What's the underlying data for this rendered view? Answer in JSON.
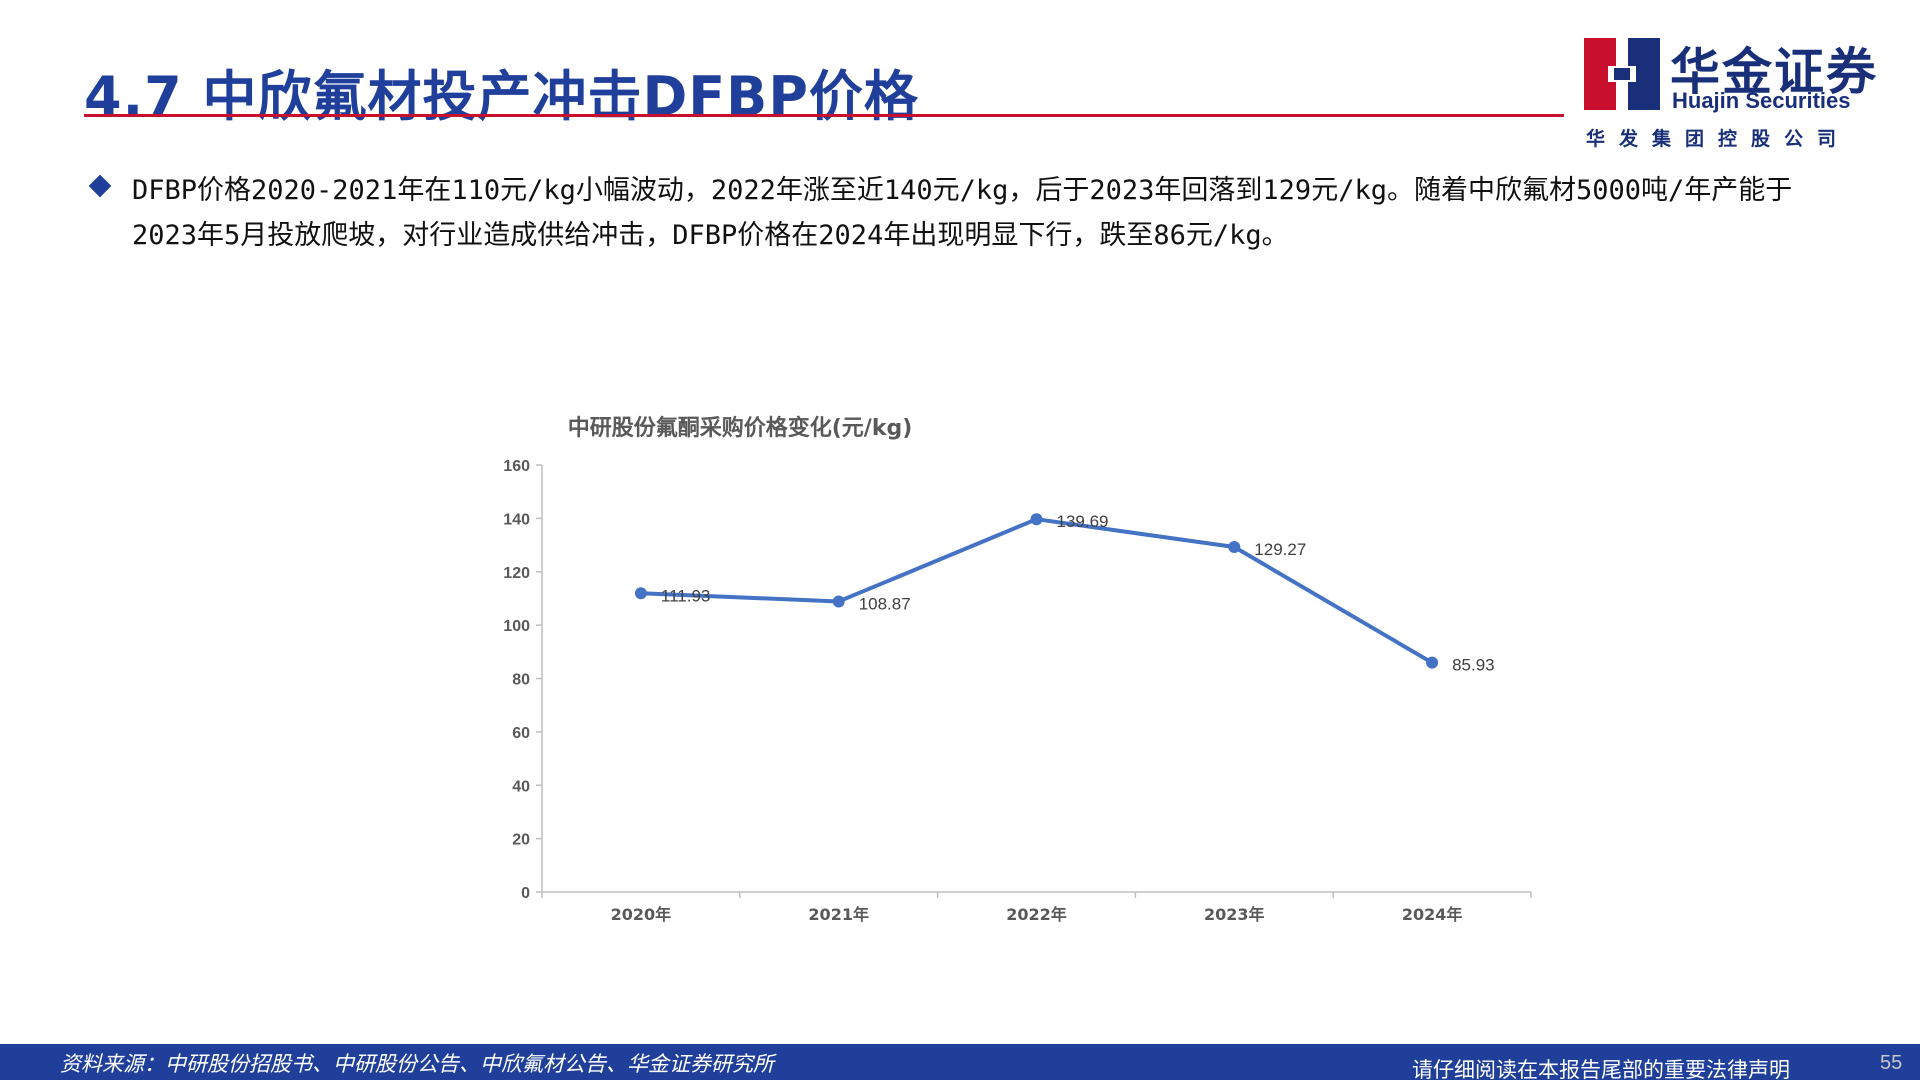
{
  "header": {
    "title": "4.7 中欣氟材投产冲击DFBP价格"
  },
  "logo": {
    "name_cn": "华金证券",
    "name_en": "Huajin Securities",
    "subtitle": "华发集团控股公司",
    "brand_colors": [
      "#c8102e",
      "#1a2f7a"
    ]
  },
  "bullet": {
    "text": "DFBP价格2020-2021年在110元/kg小幅波动，2022年涨至近140元/kg，后于2023年回落到129元/kg。随着中欣氟材5000吨/年产能于2023年5月投放爬坡，对行业造成供给冲击，DFBP价格在2024年出现明显下行，跌至86元/kg。"
  },
  "chart_data": {
    "type": "line",
    "title": "中研股份氟酮采购价格变化(元/kg)",
    "categories": [
      "2020年",
      "2021年",
      "2022年",
      "2023年",
      "2024年"
    ],
    "series": [
      {
        "values": [
          111.93,
          108.87,
          139.69,
          129.27,
          85.93
        ],
        "color": "#4472c4"
      }
    ],
    "data_labels": [
      "111.93",
      "108.87",
      "139.69",
      "129.27",
      "85.93"
    ],
    "y_ticks": [
      "0",
      "20",
      "40",
      "60",
      "80",
      "100",
      "120",
      "140",
      "160"
    ],
    "ylim": [
      0,
      160
    ],
    "grid": false,
    "legend": "none"
  },
  "footer": {
    "source": "资料来源：中研股份招股书、中研股份公告、中欣氟材公告、华金证券研究所",
    "notice": "请仔细阅读在本报告尾部的重要法律声明",
    "page_number": "55"
  }
}
